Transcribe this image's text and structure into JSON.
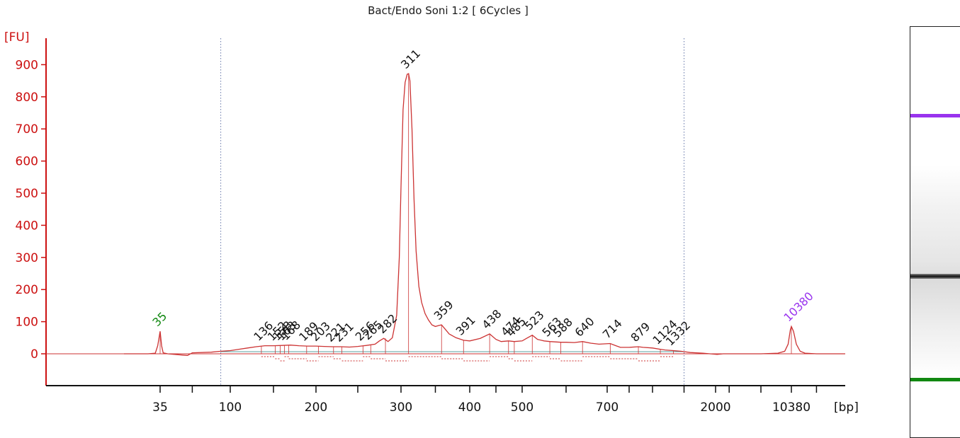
{
  "chart_data": {
    "type": "line",
    "title": "Bact/Endo Soni 1:2  [ 6Cycles ]",
    "ylabel": "[FU]",
    "xlabel": "[bp]",
    "ylim": [
      -90,
      960
    ],
    "yticks": [
      0,
      100,
      200,
      300,
      400,
      500,
      600,
      700,
      800,
      900
    ],
    "xticks": [
      "35",
      "100",
      "200",
      "300",
      "400",
      "500",
      "700",
      "2000",
      "10380"
    ],
    "grid": false,
    "series": [
      {
        "points": [
          [
            20,
            0
          ],
          [
            30,
            0
          ],
          [
            33,
            2
          ],
          [
            34,
            25
          ],
          [
            35,
            70
          ],
          [
            36,
            25
          ],
          [
            37,
            3
          ],
          [
            40,
            0
          ],
          [
            50,
            -4
          ],
          [
            55,
            -5
          ],
          [
            60,
            3
          ],
          [
            80,
            5
          ],
          [
            90,
            8
          ],
          [
            100,
            10
          ],
          [
            110,
            14
          ],
          [
            120,
            18
          ],
          [
            130,
            22
          ],
          [
            140,
            25
          ],
          [
            150,
            25
          ],
          [
            160,
            26
          ],
          [
            170,
            27
          ],
          [
            180,
            25
          ],
          [
            190,
            24
          ],
          [
            200,
            24
          ],
          [
            210,
            23
          ],
          [
            220,
            22
          ],
          [
            230,
            22
          ],
          [
            240,
            21
          ],
          [
            250,
            23
          ],
          [
            260,
            26
          ],
          [
            270,
            30
          ],
          [
            275,
            40
          ],
          [
            280,
            48
          ],
          [
            285,
            38
          ],
          [
            290,
            50
          ],
          [
            295,
            120
          ],
          [
            298,
            300
          ],
          [
            300,
            520
          ],
          [
            303,
            760
          ],
          [
            306,
            845
          ],
          [
            309,
            870
          ],
          [
            311,
            872
          ],
          [
            313,
            850
          ],
          [
            316,
            700
          ],
          [
            319,
            480
          ],
          [
            322,
            320
          ],
          [
            326,
            210
          ],
          [
            330,
            160
          ],
          [
            335,
            125
          ],
          [
            340,
            105
          ],
          [
            345,
            90
          ],
          [
            350,
            85
          ],
          [
            355,
            88
          ],
          [
            359,
            90
          ],
          [
            365,
            75
          ],
          [
            370,
            62
          ],
          [
            380,
            50
          ],
          [
            391,
            42
          ],
          [
            400,
            40
          ],
          [
            420,
            48
          ],
          [
            438,
            62
          ],
          [
            450,
            45
          ],
          [
            460,
            38
          ],
          [
            474,
            40
          ],
          [
            485,
            38
          ],
          [
            500,
            40
          ],
          [
            510,
            48
          ],
          [
            523,
            58
          ],
          [
            535,
            45
          ],
          [
            550,
            40
          ],
          [
            563,
            38
          ],
          [
            588,
            36
          ],
          [
            600,
            36
          ],
          [
            620,
            35
          ],
          [
            640,
            38
          ],
          [
            660,
            33
          ],
          [
            680,
            30
          ],
          [
            714,
            32
          ],
          [
            740,
            25
          ],
          [
            760,
            20
          ],
          [
            800,
            20
          ],
          [
            879,
            22
          ],
          [
            920,
            20
          ],
          [
            1000,
            18
          ],
          [
            1124,
            14
          ],
          [
            1200,
            12
          ],
          [
            1332,
            10
          ],
          [
            1450,
            8
          ],
          [
            1600,
            4
          ],
          [
            1800,
            2
          ],
          [
            2100,
            -2
          ],
          [
            2500,
            0
          ],
          [
            3500,
            0
          ],
          [
            5000,
            0
          ],
          [
            8000,
            2
          ],
          [
            9200,
            8
          ],
          [
            9800,
            30
          ],
          [
            10200,
            75
          ],
          [
            10380,
            85
          ],
          [
            10600,
            70
          ],
          [
            10900,
            30
          ],
          [
            11300,
            8
          ],
          [
            11800,
            2
          ],
          [
            13000,
            0
          ],
          [
            16000,
            0
          ]
        ]
      }
    ],
    "peak_labels": [
      {
        "bp": 35,
        "label": "35",
        "fu": 70,
        "marker": "lower"
      },
      {
        "bp": 136,
        "label": "136",
        "fu": 25
      },
      {
        "bp": 152,
        "label": "152",
        "fu": 25
      },
      {
        "bp": 158,
        "label": "158",
        "fu": 26
      },
      {
        "bp": 163,
        "label": "163",
        "fu": 26
      },
      {
        "bp": 168,
        "label": "168",
        "fu": 27
      },
      {
        "bp": 189,
        "label": "189",
        "fu": 24
      },
      {
        "bp": 203,
        "label": "203",
        "fu": 24
      },
      {
        "bp": 221,
        "label": "221",
        "fu": 22
      },
      {
        "bp": 231,
        "label": "231",
        "fu": 22
      },
      {
        "bp": 256,
        "label": "256",
        "fu": 25
      },
      {
        "bp": 265,
        "label": "265",
        "fu": 28
      },
      {
        "bp": 282,
        "label": "282",
        "fu": 48
      },
      {
        "bp": 311,
        "label": "311",
        "fu": 872
      },
      {
        "bp": 359,
        "label": "359",
        "fu": 90
      },
      {
        "bp": 391,
        "label": "391",
        "fu": 42
      },
      {
        "bp": 438,
        "label": "438",
        "fu": 62
      },
      {
        "bp": 474,
        "label": "474",
        "fu": 40
      },
      {
        "bp": 485,
        "label": "485",
        "fu": 38
      },
      {
        "bp": 523,
        "label": "523",
        "fu": 58
      },
      {
        "bp": 563,
        "label": "563",
        "fu": 38
      },
      {
        "bp": 588,
        "label": "588",
        "fu": 36
      },
      {
        "bp": 640,
        "label": "640",
        "fu": 38
      },
      {
        "bp": 714,
        "label": "714",
        "fu": 32
      },
      {
        "bp": 879,
        "label": "879",
        "fu": 22
      },
      {
        "bp": 1124,
        "label": "1124",
        "fu": 14
      },
      {
        "bp": 1332,
        "label": "1332",
        "fu": 10
      },
      {
        "bp": 10380,
        "label": "10380",
        "fu": 85,
        "marker": "upper"
      }
    ],
    "region_bounds_bp": [
      90,
      1500
    ]
  },
  "colors": {
    "axis": "#cc1111",
    "trace": "#cc3333",
    "baseline": "#5aa0a0",
    "lower_marker": "#118811",
    "upper_marker": "#9933ee",
    "label": "#111111"
  }
}
